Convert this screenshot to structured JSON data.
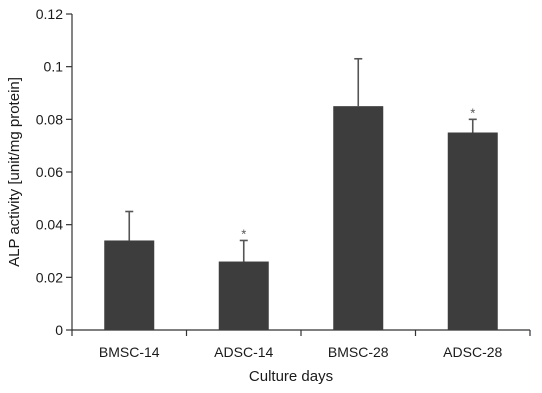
{
  "chart_data": {
    "type": "bar",
    "categories": [
      "BMSC-14",
      "ADSC-14",
      "BMSC-28",
      "ADSC-28"
    ],
    "values": [
      0.034,
      0.026,
      0.085,
      0.075
    ],
    "errors": [
      0.011,
      0.008,
      0.018,
      0.005
    ],
    "significance": [
      "",
      "*",
      "",
      "*"
    ],
    "xlabel": "Culture days",
    "ylabel": "ALP activity [unit/mg protein]",
    "ylim": [
      0,
      0.12
    ],
    "yticks": [
      0,
      0.02,
      0.04,
      0.06,
      0.08,
      0.1,
      0.12
    ],
    "ytick_labels": [
      "0",
      "0.02",
      "0.04",
      "0.06",
      "0.08",
      "0.1",
      "0.12"
    ],
    "grid": false,
    "bar_color": "#3d3d3d"
  }
}
